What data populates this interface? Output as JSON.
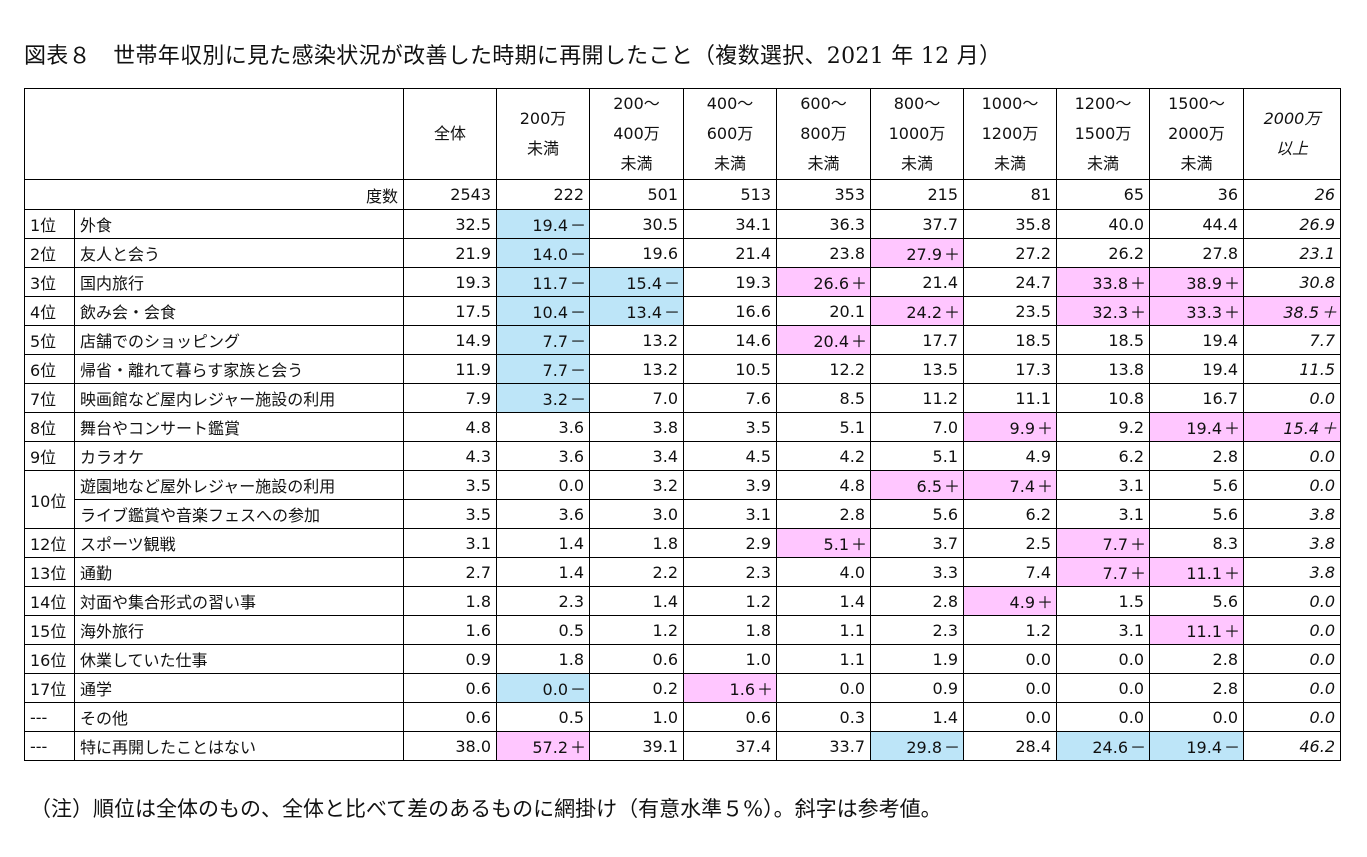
{
  "title": "図表８　世帯年収別に見た感染状況が改善した時期に再開したこと（複数選択、2021 年 12 月）",
  "note": "（注）順位は全体のもの、全体と比べて差のあるものに網掛け（有意水準５%）。斜字は参考値。",
  "columns": [
    {
      "l1": "全体",
      "l2": "",
      "l3": ""
    },
    {
      "l1": "200万",
      "l2": "未満",
      "l3": ""
    },
    {
      "l1": "200～",
      "l2": "400万",
      "l3": "未満"
    },
    {
      "l1": "400～",
      "l2": "600万",
      "l3": "未満"
    },
    {
      "l1": "600～",
      "l2": "800万",
      "l3": "未満"
    },
    {
      "l1": "800～",
      "l2": "1000万",
      "l3": "未満"
    },
    {
      "l1": "1000～",
      "l2": "1200万",
      "l3": "未満"
    },
    {
      "l1": "1200～",
      "l2": "1500万",
      "l3": "未満"
    },
    {
      "l1": "1500～",
      "l2": "2000万",
      "l3": "未満"
    },
    {
      "l1": "2000万",
      "l2": "以上",
      "l3": ""
    }
  ],
  "count_label": "度数",
  "counts": [
    "2543",
    "222",
    "501",
    "513",
    "353",
    "215",
    "81",
    "65",
    "36",
    "26"
  ],
  "rows": [
    {
      "rank": "1位",
      "item": "外食",
      "values": [
        {
          "v": "32.5",
          "s": ""
        },
        {
          "v": "19.4",
          "s": "－"
        },
        {
          "v": "30.5",
          "s": ""
        },
        {
          "v": "34.1",
          "s": ""
        },
        {
          "v": "36.3",
          "s": ""
        },
        {
          "v": "37.7",
          "s": ""
        },
        {
          "v": "35.8",
          "s": ""
        },
        {
          "v": "40.0",
          "s": ""
        },
        {
          "v": "44.4",
          "s": ""
        },
        {
          "v": "26.9",
          "s": ""
        }
      ]
    },
    {
      "rank": "2位",
      "item": "友人と会う",
      "values": [
        {
          "v": "21.9",
          "s": ""
        },
        {
          "v": "14.0",
          "s": "－"
        },
        {
          "v": "19.6",
          "s": ""
        },
        {
          "v": "21.4",
          "s": ""
        },
        {
          "v": "23.8",
          "s": ""
        },
        {
          "v": "27.9",
          "s": "＋"
        },
        {
          "v": "27.2",
          "s": ""
        },
        {
          "v": "26.2",
          "s": ""
        },
        {
          "v": "27.8",
          "s": ""
        },
        {
          "v": "23.1",
          "s": ""
        }
      ]
    },
    {
      "rank": "3位",
      "item": "国内旅行",
      "values": [
        {
          "v": "19.3",
          "s": ""
        },
        {
          "v": "11.7",
          "s": "－"
        },
        {
          "v": "15.4",
          "s": "－"
        },
        {
          "v": "19.3",
          "s": ""
        },
        {
          "v": "26.6",
          "s": "＋"
        },
        {
          "v": "21.4",
          "s": ""
        },
        {
          "v": "24.7",
          "s": ""
        },
        {
          "v": "33.8",
          "s": "＋"
        },
        {
          "v": "38.9",
          "s": "＋"
        },
        {
          "v": "30.8",
          "s": ""
        }
      ]
    },
    {
      "rank": "4位",
      "item": "飲み会・会食",
      "values": [
        {
          "v": "17.5",
          "s": ""
        },
        {
          "v": "10.4",
          "s": "－"
        },
        {
          "v": "13.4",
          "s": "－"
        },
        {
          "v": "16.6",
          "s": ""
        },
        {
          "v": "20.1",
          "s": ""
        },
        {
          "v": "24.2",
          "s": "＋"
        },
        {
          "v": "23.5",
          "s": ""
        },
        {
          "v": "32.3",
          "s": "＋"
        },
        {
          "v": "33.3",
          "s": "＋"
        },
        {
          "v": "38.5",
          "s": "＋"
        }
      ]
    },
    {
      "rank": "5位",
      "item": "店舗でのショッピング",
      "values": [
        {
          "v": "14.9",
          "s": ""
        },
        {
          "v": "7.7",
          "s": "－"
        },
        {
          "v": "13.2",
          "s": ""
        },
        {
          "v": "14.6",
          "s": ""
        },
        {
          "v": "20.4",
          "s": "＋"
        },
        {
          "v": "17.7",
          "s": ""
        },
        {
          "v": "18.5",
          "s": ""
        },
        {
          "v": "18.5",
          "s": ""
        },
        {
          "v": "19.4",
          "s": ""
        },
        {
          "v": "7.7",
          "s": ""
        }
      ]
    },
    {
      "rank": "6位",
      "item": "帰省・離れて暮らす家族と会う",
      "values": [
        {
          "v": "11.9",
          "s": ""
        },
        {
          "v": "7.7",
          "s": "－"
        },
        {
          "v": "13.2",
          "s": ""
        },
        {
          "v": "10.5",
          "s": ""
        },
        {
          "v": "12.2",
          "s": ""
        },
        {
          "v": "13.5",
          "s": ""
        },
        {
          "v": "17.3",
          "s": ""
        },
        {
          "v": "13.8",
          "s": ""
        },
        {
          "v": "19.4",
          "s": ""
        },
        {
          "v": "11.5",
          "s": ""
        }
      ]
    },
    {
      "rank": "7位",
      "item": "映画館など屋内レジャー施設の利用",
      "values": [
        {
          "v": "7.9",
          "s": ""
        },
        {
          "v": "3.2",
          "s": "－"
        },
        {
          "v": "7.0",
          "s": ""
        },
        {
          "v": "7.6",
          "s": ""
        },
        {
          "v": "8.5",
          "s": ""
        },
        {
          "v": "11.2",
          "s": ""
        },
        {
          "v": "11.1",
          "s": ""
        },
        {
          "v": "10.8",
          "s": ""
        },
        {
          "v": "16.7",
          "s": ""
        },
        {
          "v": "0.0",
          "s": ""
        }
      ]
    },
    {
      "rank": "8位",
      "item": "舞台やコンサート鑑賞",
      "values": [
        {
          "v": "4.8",
          "s": ""
        },
        {
          "v": "3.6",
          "s": ""
        },
        {
          "v": "3.8",
          "s": ""
        },
        {
          "v": "3.5",
          "s": ""
        },
        {
          "v": "5.1",
          "s": ""
        },
        {
          "v": "7.0",
          "s": ""
        },
        {
          "v": "9.9",
          "s": "＋"
        },
        {
          "v": "9.2",
          "s": ""
        },
        {
          "v": "19.4",
          "s": "＋"
        },
        {
          "v": "15.4",
          "s": "＋"
        }
      ]
    },
    {
      "rank": "9位",
      "item": "カラオケ",
      "values": [
        {
          "v": "4.3",
          "s": ""
        },
        {
          "v": "3.6",
          "s": ""
        },
        {
          "v": "3.4",
          "s": ""
        },
        {
          "v": "4.5",
          "s": ""
        },
        {
          "v": "4.2",
          "s": ""
        },
        {
          "v": "5.1",
          "s": ""
        },
        {
          "v": "4.9",
          "s": ""
        },
        {
          "v": "6.2",
          "s": ""
        },
        {
          "v": "2.8",
          "s": ""
        },
        {
          "v": "0.0",
          "s": ""
        }
      ]
    },
    {
      "rank": "10位",
      "item": "遊園地など屋外レジャー施設の利用",
      "values": [
        {
          "v": "3.5",
          "s": ""
        },
        {
          "v": "0.0",
          "s": ""
        },
        {
          "v": "3.2",
          "s": ""
        },
        {
          "v": "3.9",
          "s": ""
        },
        {
          "v": "4.8",
          "s": ""
        },
        {
          "v": "6.5",
          "s": "＋"
        },
        {
          "v": "7.4",
          "s": "＋"
        },
        {
          "v": "3.1",
          "s": ""
        },
        {
          "v": "5.6",
          "s": ""
        },
        {
          "v": "0.0",
          "s": ""
        }
      ]
    },
    {
      "rank": "",
      "item": "ライブ鑑賞や音楽フェスへの参加",
      "values": [
        {
          "v": "3.5",
          "s": ""
        },
        {
          "v": "3.6",
          "s": ""
        },
        {
          "v": "3.0",
          "s": ""
        },
        {
          "v": "3.1",
          "s": ""
        },
        {
          "v": "2.8",
          "s": ""
        },
        {
          "v": "5.6",
          "s": ""
        },
        {
          "v": "6.2",
          "s": ""
        },
        {
          "v": "3.1",
          "s": ""
        },
        {
          "v": "5.6",
          "s": ""
        },
        {
          "v": "3.8",
          "s": ""
        }
      ]
    },
    {
      "rank": "12位",
      "item": "スポーツ観戦",
      "values": [
        {
          "v": "3.1",
          "s": ""
        },
        {
          "v": "1.4",
          "s": ""
        },
        {
          "v": "1.8",
          "s": ""
        },
        {
          "v": "2.9",
          "s": ""
        },
        {
          "v": "5.1",
          "s": "＋"
        },
        {
          "v": "3.7",
          "s": ""
        },
        {
          "v": "2.5",
          "s": ""
        },
        {
          "v": "7.7",
          "s": "＋"
        },
        {
          "v": "8.3",
          "s": ""
        },
        {
          "v": "3.8",
          "s": ""
        }
      ]
    },
    {
      "rank": "13位",
      "item": "通勤",
      "values": [
        {
          "v": "2.7",
          "s": ""
        },
        {
          "v": "1.4",
          "s": ""
        },
        {
          "v": "2.2",
          "s": ""
        },
        {
          "v": "2.3",
          "s": ""
        },
        {
          "v": "4.0",
          "s": ""
        },
        {
          "v": "3.3",
          "s": ""
        },
        {
          "v": "7.4",
          "s": ""
        },
        {
          "v": "7.7",
          "s": "＋"
        },
        {
          "v": "11.1",
          "s": "＋"
        },
        {
          "v": "3.8",
          "s": ""
        }
      ]
    },
    {
      "rank": "14位",
      "item": "対面や集合形式の習い事",
      "values": [
        {
          "v": "1.8",
          "s": ""
        },
        {
          "v": "2.3",
          "s": ""
        },
        {
          "v": "1.4",
          "s": ""
        },
        {
          "v": "1.2",
          "s": ""
        },
        {
          "v": "1.4",
          "s": ""
        },
        {
          "v": "2.8",
          "s": ""
        },
        {
          "v": "4.9",
          "s": "＋"
        },
        {
          "v": "1.5",
          "s": ""
        },
        {
          "v": "5.6",
          "s": ""
        },
        {
          "v": "0.0",
          "s": ""
        }
      ]
    },
    {
      "rank": "15位",
      "item": "海外旅行",
      "values": [
        {
          "v": "1.6",
          "s": ""
        },
        {
          "v": "0.5",
          "s": ""
        },
        {
          "v": "1.2",
          "s": ""
        },
        {
          "v": "1.8",
          "s": ""
        },
        {
          "v": "1.1",
          "s": ""
        },
        {
          "v": "2.3",
          "s": ""
        },
        {
          "v": "1.2",
          "s": ""
        },
        {
          "v": "3.1",
          "s": ""
        },
        {
          "v": "11.1",
          "s": "＋"
        },
        {
          "v": "0.0",
          "s": ""
        }
      ]
    },
    {
      "rank": "16位",
      "item": "休業していた仕事",
      "values": [
        {
          "v": "0.9",
          "s": ""
        },
        {
          "v": "1.8",
          "s": ""
        },
        {
          "v": "0.6",
          "s": ""
        },
        {
          "v": "1.0",
          "s": ""
        },
        {
          "v": "1.1",
          "s": ""
        },
        {
          "v": "1.9",
          "s": ""
        },
        {
          "v": "0.0",
          "s": ""
        },
        {
          "v": "0.0",
          "s": ""
        },
        {
          "v": "2.8",
          "s": ""
        },
        {
          "v": "0.0",
          "s": ""
        }
      ]
    },
    {
      "rank": "17位",
      "item": "通学",
      "values": [
        {
          "v": "0.6",
          "s": ""
        },
        {
          "v": "0.0",
          "s": "－"
        },
        {
          "v": "0.2",
          "s": ""
        },
        {
          "v": "1.6",
          "s": "＋"
        },
        {
          "v": "0.0",
          "s": ""
        },
        {
          "v": "0.9",
          "s": ""
        },
        {
          "v": "0.0",
          "s": ""
        },
        {
          "v": "0.0",
          "s": ""
        },
        {
          "v": "2.8",
          "s": ""
        },
        {
          "v": "0.0",
          "s": ""
        }
      ]
    },
    {
      "rank": "---",
      "item": "その他",
      "values": [
        {
          "v": "0.6",
          "s": ""
        },
        {
          "v": "0.5",
          "s": ""
        },
        {
          "v": "1.0",
          "s": ""
        },
        {
          "v": "0.6",
          "s": ""
        },
        {
          "v": "0.3",
          "s": ""
        },
        {
          "v": "1.4",
          "s": ""
        },
        {
          "v": "0.0",
          "s": ""
        },
        {
          "v": "0.0",
          "s": ""
        },
        {
          "v": "0.0",
          "s": ""
        },
        {
          "v": "0.0",
          "s": ""
        }
      ]
    },
    {
      "rank": "---",
      "item": "特に再開したことはない",
      "values": [
        {
          "v": "38.0",
          "s": ""
        },
        {
          "v": "57.2",
          "s": "＋"
        },
        {
          "v": "39.1",
          "s": ""
        },
        {
          "v": "37.4",
          "s": ""
        },
        {
          "v": "33.7",
          "s": ""
        },
        {
          "v": "29.8",
          "s": "－"
        },
        {
          "v": "28.4",
          "s": ""
        },
        {
          "v": "24.6",
          "s": "－"
        },
        {
          "v": "19.4",
          "s": "－"
        },
        {
          "v": "46.2",
          "s": ""
        }
      ]
    }
  ],
  "colors": {
    "higher": "#ffc6ff",
    "lower": "#bde5f8"
  }
}
